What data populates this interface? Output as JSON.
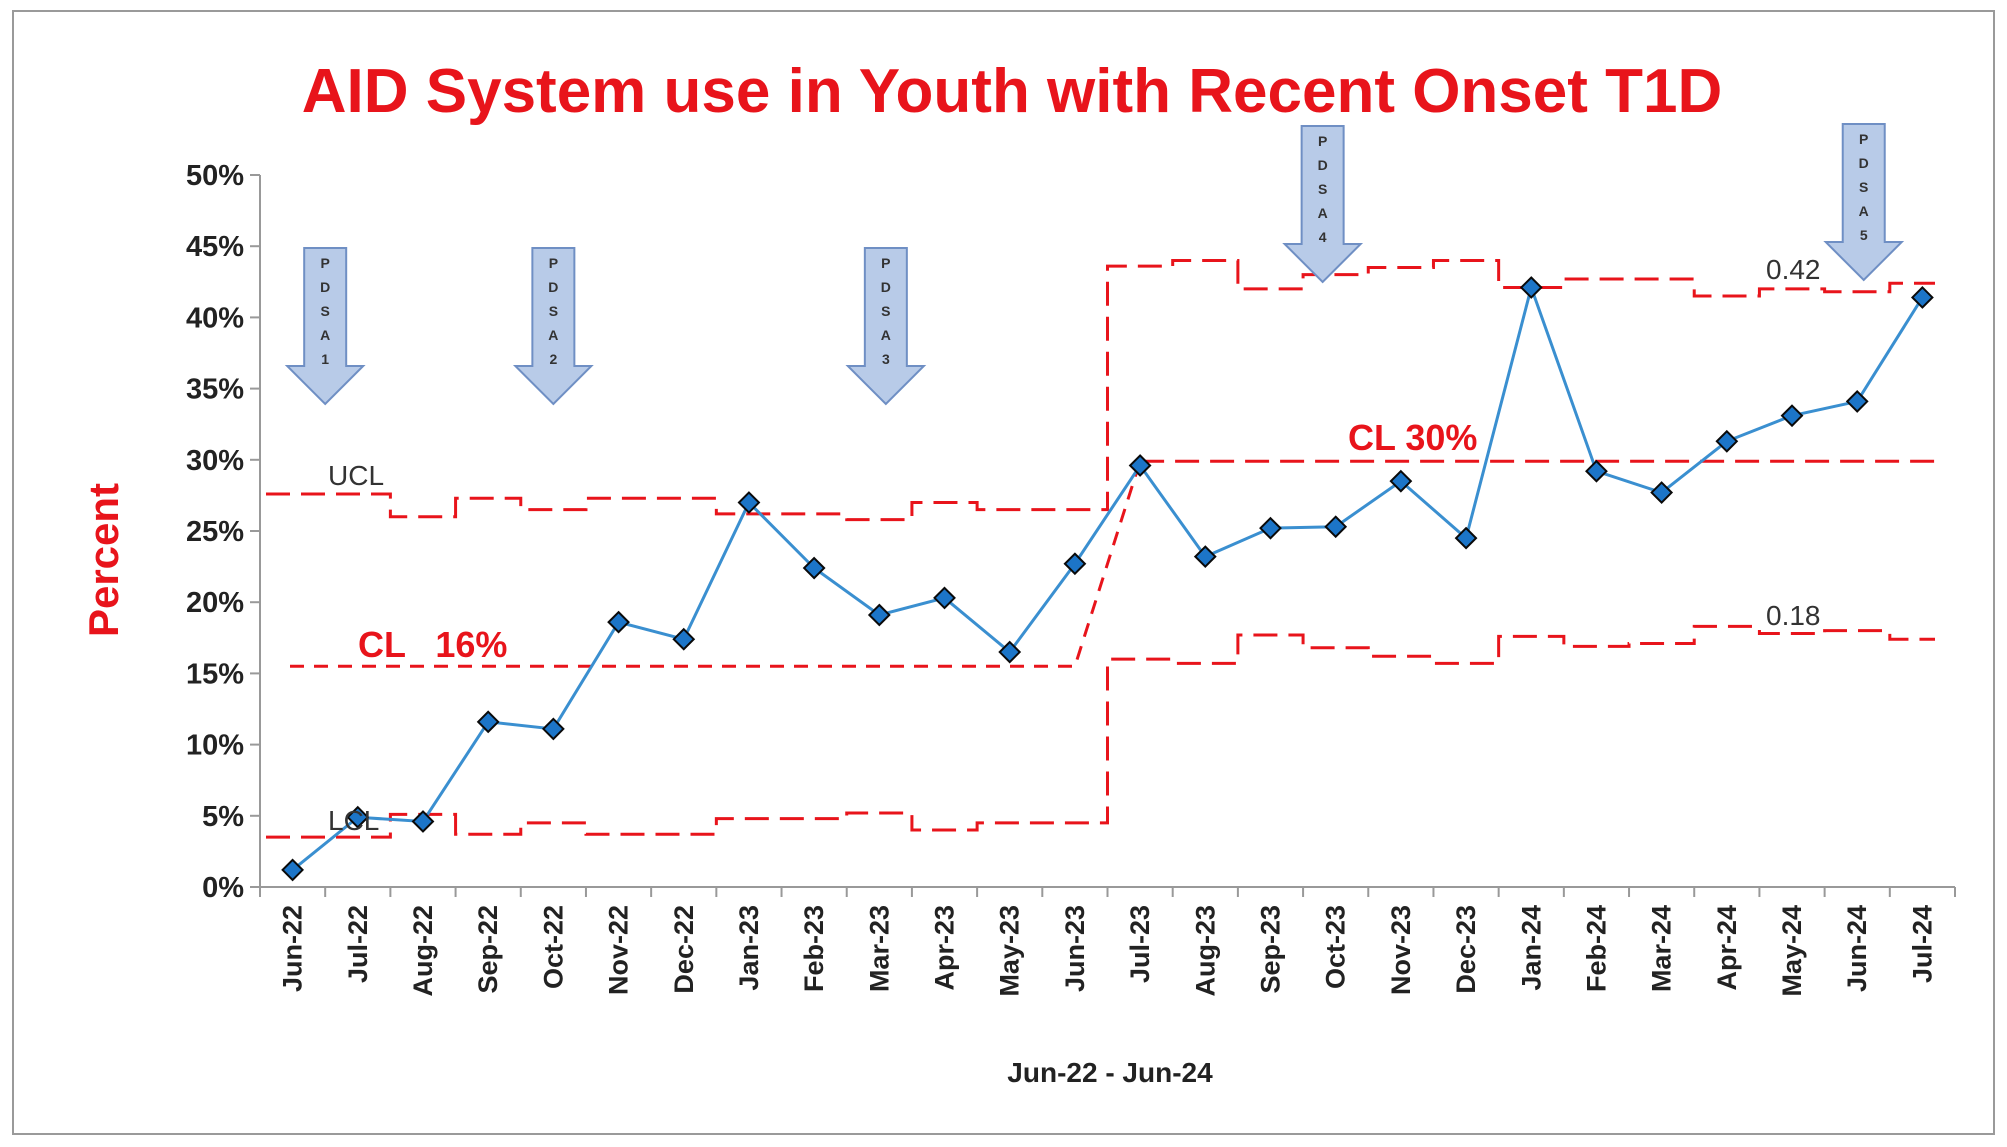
{
  "chart_data": {
    "type": "line",
    "title": "AID System use in Youth with Recent Onset T1D",
    "xlabel": "Jun-22 - Jun-24",
    "ylabel": "Percent",
    "ylim": [
      0,
      0.5
    ],
    "yticks": [
      "0%",
      "5%",
      "10%",
      "15%",
      "20%",
      "25%",
      "30%",
      "35%",
      "40%",
      "45%",
      "50%"
    ],
    "categories": [
      "Jun-22",
      "Jul-22",
      "Aug-22",
      "Sep-22",
      "Oct-22",
      "Nov-22",
      "Dec-22",
      "Jan-23",
      "Feb-23",
      "Mar-23",
      "Apr-23",
      "May-23",
      "Jun-23",
      "Jul-23",
      "Aug-23",
      "Sep-23",
      "Oct-23",
      "Nov-23",
      "Dec-23",
      "Jan-24",
      "Feb-24",
      "Mar-24",
      "Apr-24",
      "May-24",
      "Jun-24",
      "Jul-24"
    ],
    "series": [
      {
        "values": [
          0.012,
          0.049,
          0.046,
          0.116,
          0.111,
          0.186,
          0.174,
          0.27,
          0.224,
          0.191,
          0.203,
          0.165,
          0.227,
          0.296,
          0.232,
          0.252,
          0.253,
          0.285,
          0.245,
          0.421,
          0.292,
          0.277,
          0.313,
          0.331,
          0.341,
          0.414
        ],
        "color": "#3a8fd0",
        "marker": "diamond"
      }
    ],
    "control_limits": {
      "color": "#e8141b",
      "center_line": [
        0.155,
        0.155,
        0.155,
        0.155,
        0.155,
        0.155,
        0.155,
        0.155,
        0.155,
        0.155,
        0.155,
        0.155,
        0.155,
        0.299,
        0.299,
        0.299,
        0.299,
        0.299,
        0.299,
        0.299,
        0.299,
        0.299,
        0.299,
        0.299,
        0.299,
        0.299
      ],
      "ucl": [
        0.276,
        0.276,
        0.26,
        0.273,
        0.265,
        0.273,
        0.273,
        0.262,
        0.262,
        0.258,
        0.27,
        0.265,
        0.265,
        0.436,
        0.44,
        0.42,
        0.43,
        0.435,
        0.44,
        0.421,
        0.427,
        0.427,
        0.415,
        0.42,
        0.418,
        0.424
      ],
      "lcl": [
        0.035,
        0.035,
        0.051,
        0.037,
        0.045,
        0.037,
        0.037,
        0.048,
        0.048,
        0.052,
        0.04,
        0.045,
        0.045,
        0.16,
        0.157,
        0.177,
        0.168,
        0.162,
        0.157,
        0.176,
        0.169,
        0.171,
        0.183,
        0.178,
        0.18,
        0.174
      ]
    },
    "annotations": {
      "ucl_label": "UCL",
      "lcl_label": "LCL",
      "cl_before": "CL   16%",
      "cl_after": "CL 30%",
      "ucl_value": "0.42",
      "lcl_value": "0.18"
    },
    "pdsa_markers": [
      {
        "label": "PDSA1",
        "letters": [
          "P",
          "D",
          "S",
          "A",
          "1"
        ],
        "at": 0.5
      },
      {
        "label": "PDSA2",
        "letters": [
          "P",
          "D",
          "S",
          "A",
          "2"
        ],
        "at": 4.0
      },
      {
        "label": "PDSA3",
        "letters": [
          "P",
          "D",
          "S",
          "A",
          "3"
        ],
        "at": 9.1
      },
      {
        "label": "PDSA4",
        "letters": [
          "P",
          "D",
          "S",
          "A",
          "4"
        ],
        "at": 15.8
      },
      {
        "label": "PDSA5",
        "letters": [
          "P",
          "D",
          "S",
          "A",
          "5"
        ],
        "at": 24.1
      }
    ],
    "grid": false,
    "legend": "none"
  }
}
